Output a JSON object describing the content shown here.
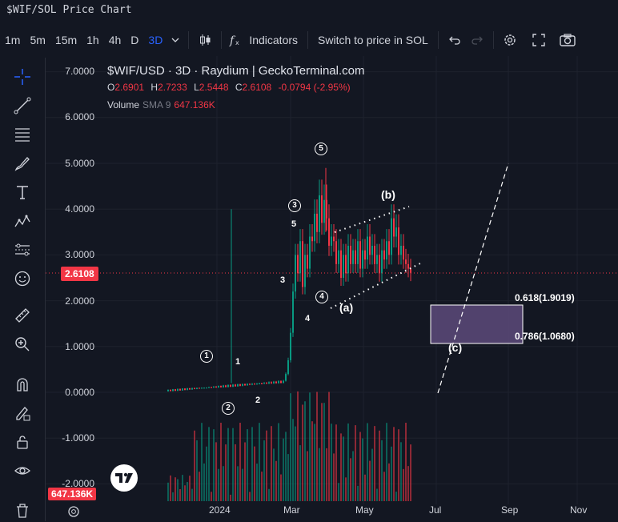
{
  "window": {
    "title": "$WIF/SOL Price Chart"
  },
  "toolbar": {
    "timeframes": [
      "1m",
      "5m",
      "15m",
      "1h",
      "4h",
      "D",
      "3D"
    ],
    "active_timeframe": "3D",
    "indicators_label": "Indicators",
    "switch_label": "Switch to price in SOL"
  },
  "legend": {
    "title": "$WIF/USD · 3D · Raydium | GeckoTerminal.com",
    "open_label": "O",
    "open": "2.6901",
    "high_label": "H",
    "high": "2.7233",
    "low_label": "L",
    "low": "2.5448",
    "close_label": "C",
    "close": "2.6108",
    "change": "-0.0794 (-2.95%)",
    "volume_label": "Volume",
    "sma_label": "SMA 9",
    "volume_value": "647.136K"
  },
  "price_axis": {
    "labels": [
      "7.0000",
      "6.0000",
      "5.0000",
      "4.0000",
      "3.0000",
      "2.0000",
      "1.0000",
      "0.0000",
      "-1.0000",
      "-2.0000"
    ],
    "current_price": "2.6108",
    "current_volume": "647.136K"
  },
  "time_axis": {
    "labels": [
      "2024",
      "Mar",
      "May",
      "Jul",
      "Sep",
      "Nov"
    ]
  },
  "annotations": {
    "waves": [
      "1",
      "2",
      "3",
      "4",
      "5"
    ],
    "sub_waves": [
      "1",
      "2",
      "3",
      "4",
      "5"
    ],
    "corrective": [
      "(a)",
      "(b)",
      "(c)"
    ],
    "fib_618": "0.618(1.9019)",
    "fib_786": "0.786(1.0680)"
  },
  "colors": {
    "up": "#089981",
    "down": "#f23645",
    "accent": "#2962ff",
    "fib_box": "#5d4a7a",
    "background": "#131722"
  },
  "icons": [
    "crosshair-icon",
    "trendline-icon",
    "fib-icon",
    "brush-icon",
    "text-icon",
    "pattern-icon",
    "forecast-icon",
    "emoji-icon",
    "ruler-icon",
    "zoom-icon",
    "magnet-icon",
    "lock-draw-icon",
    "lock-icon",
    "eye-icon",
    "trash-icon",
    "undo-icon",
    "redo-icon",
    "settings-icon",
    "fullscreen-icon",
    "camera-icon"
  ]
}
